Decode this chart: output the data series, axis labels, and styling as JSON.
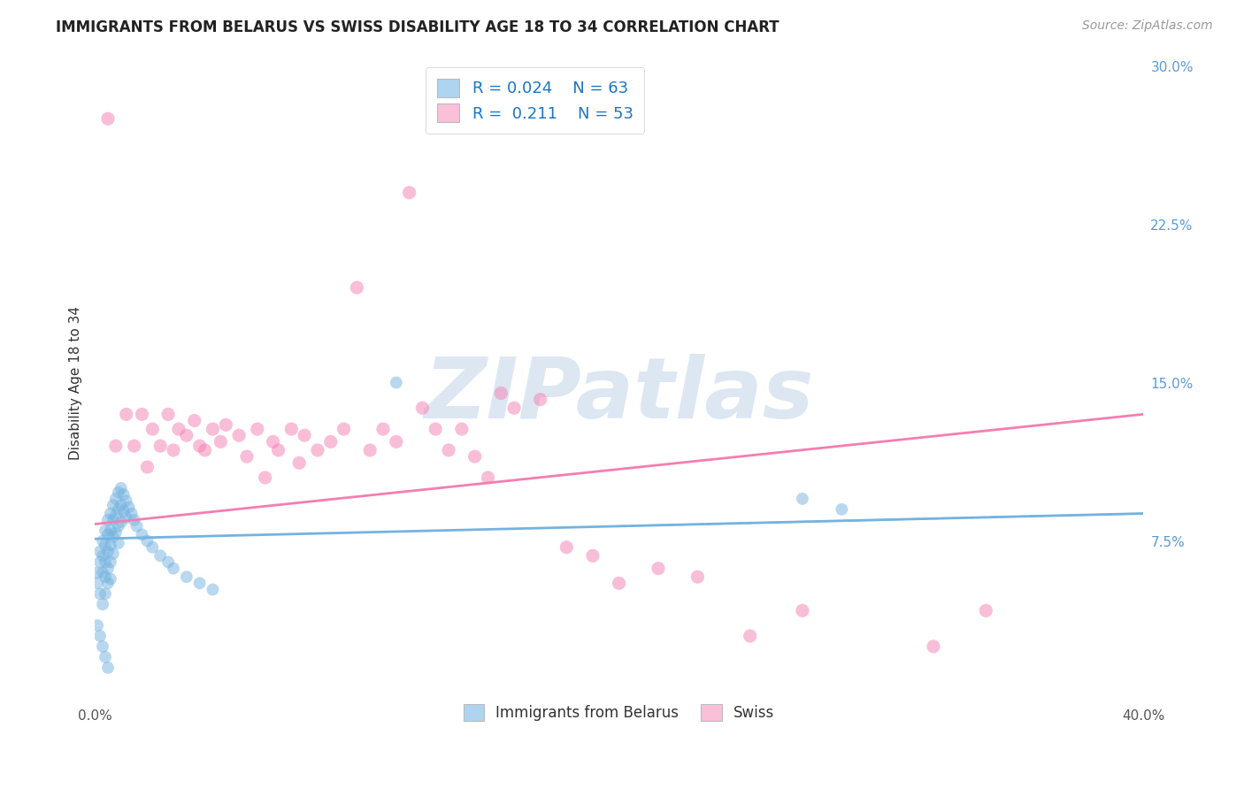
{
  "title": "IMMIGRANTS FROM BELARUS VS SWISS DISABILITY AGE 18 TO 34 CORRELATION CHART",
  "source": "Source: ZipAtlas.com",
  "ylabel": "Disability Age 18 to 34",
  "xlim": [
    0.0,
    0.4
  ],
  "ylim": [
    0.0,
    0.3
  ],
  "xticks": [
    0.0,
    0.08,
    0.16,
    0.24,
    0.32,
    0.4
  ],
  "yticks_right": [
    0.0,
    0.075,
    0.15,
    0.225,
    0.3
  ],
  "ytick_labels_right": [
    "",
    "7.5%",
    "15.0%",
    "22.5%",
    "30.0%"
  ],
  "xtick_labels": [
    "0.0%",
    "",
    "",
    "",
    "",
    "40.0%"
  ],
  "color_blue": "#74b3e0",
  "color_pink": "#f47eb0",
  "legend_R1": "0.024",
  "legend_N1": "63",
  "legend_R2": "0.211",
  "legend_N2": "53",
  "blue_scatter_x": [
    0.001,
    0.001,
    0.002,
    0.002,
    0.002,
    0.003,
    0.003,
    0.003,
    0.003,
    0.004,
    0.004,
    0.004,
    0.004,
    0.004,
    0.005,
    0.005,
    0.005,
    0.005,
    0.005,
    0.006,
    0.006,
    0.006,
    0.006,
    0.006,
    0.007,
    0.007,
    0.007,
    0.007,
    0.008,
    0.008,
    0.008,
    0.009,
    0.009,
    0.009,
    0.009,
    0.01,
    0.01,
    0.01,
    0.011,
    0.011,
    0.012,
    0.012,
    0.013,
    0.014,
    0.015,
    0.016,
    0.018,
    0.02,
    0.022,
    0.025,
    0.028,
    0.03,
    0.035,
    0.04,
    0.045,
    0.115,
    0.27,
    0.285,
    0.001,
    0.002,
    0.003,
    0.004,
    0.005
  ],
  "blue_scatter_y": [
    0.06,
    0.055,
    0.07,
    0.065,
    0.05,
    0.075,
    0.068,
    0.06,
    0.045,
    0.08,
    0.073,
    0.065,
    0.058,
    0.05,
    0.085,
    0.078,
    0.07,
    0.062,
    0.055,
    0.088,
    0.08,
    0.073,
    0.065,
    0.057,
    0.092,
    0.085,
    0.077,
    0.069,
    0.095,
    0.087,
    0.079,
    0.098,
    0.09,
    0.082,
    0.074,
    0.1,
    0.092,
    0.084,
    0.097,
    0.089,
    0.094,
    0.086,
    0.091,
    0.088,
    0.085,
    0.082,
    0.078,
    0.075,
    0.072,
    0.068,
    0.065,
    0.062,
    0.058,
    0.055,
    0.052,
    0.15,
    0.095,
    0.09,
    0.035,
    0.03,
    0.025,
    0.02,
    0.015
  ],
  "pink_scatter_x": [
    0.005,
    0.008,
    0.012,
    0.015,
    0.018,
    0.02,
    0.022,
    0.025,
    0.028,
    0.03,
    0.032,
    0.035,
    0.038,
    0.04,
    0.042,
    0.045,
    0.048,
    0.05,
    0.055,
    0.058,
    0.062,
    0.065,
    0.068,
    0.07,
    0.075,
    0.078,
    0.08,
    0.085,
    0.09,
    0.095,
    0.1,
    0.105,
    0.11,
    0.115,
    0.12,
    0.125,
    0.13,
    0.135,
    0.14,
    0.145,
    0.15,
    0.155,
    0.16,
    0.17,
    0.18,
    0.19,
    0.2,
    0.215,
    0.23,
    0.25,
    0.27,
    0.32,
    0.34
  ],
  "pink_scatter_y": [
    0.275,
    0.12,
    0.135,
    0.12,
    0.135,
    0.11,
    0.128,
    0.12,
    0.135,
    0.118,
    0.128,
    0.125,
    0.132,
    0.12,
    0.118,
    0.128,
    0.122,
    0.13,
    0.125,
    0.115,
    0.128,
    0.105,
    0.122,
    0.118,
    0.128,
    0.112,
    0.125,
    0.118,
    0.122,
    0.128,
    0.195,
    0.118,
    0.128,
    0.122,
    0.24,
    0.138,
    0.128,
    0.118,
    0.128,
    0.115,
    0.105,
    0.145,
    0.138,
    0.142,
    0.072,
    0.068,
    0.055,
    0.062,
    0.058,
    0.03,
    0.042,
    0.025,
    0.042
  ],
  "blue_line_x": [
    0.0,
    0.4
  ],
  "blue_line_y": [
    0.076,
    0.088
  ],
  "pink_line_x": [
    0.0,
    0.4
  ],
  "pink_line_y": [
    0.083,
    0.135
  ],
  "watermark": "ZIPatlas",
  "background_color": "#ffffff",
  "grid_color": "#e0e0e0"
}
